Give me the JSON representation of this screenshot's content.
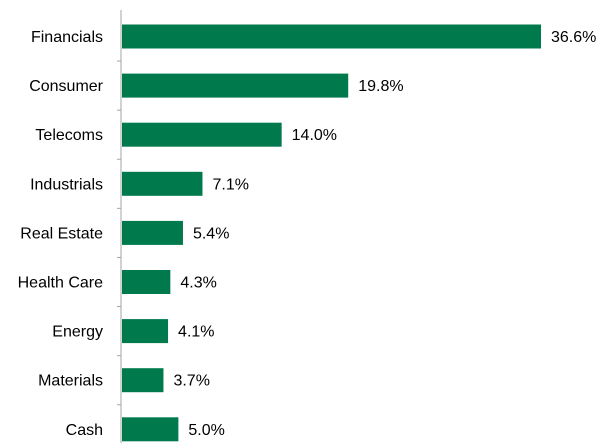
{
  "chart_data": {
    "type": "bar",
    "orientation": "horizontal",
    "categories": [
      "Financials",
      "Consumer",
      "Telecoms",
      "Industrials",
      "Real Estate",
      "Health Care",
      "Energy",
      "Materials",
      "Cash"
    ],
    "values": [
      36.6,
      19.8,
      14.0,
      7.1,
      5.4,
      4.3,
      4.1,
      3.7,
      5.0
    ],
    "value_labels": [
      "36.6%",
      "19.8%",
      "14.0%",
      "7.1%",
      "5.4%",
      "4.3%",
      "4.1%",
      "3.7%",
      "5.0%"
    ],
    "title": "",
    "xlabel": "",
    "ylabel": "",
    "xlim": [
      0,
      36.6
    ],
    "grid": false,
    "legend": "none",
    "bar_color": "#007a4c",
    "axis_color": "#a6a6a6",
    "text_color": "#000000"
  }
}
